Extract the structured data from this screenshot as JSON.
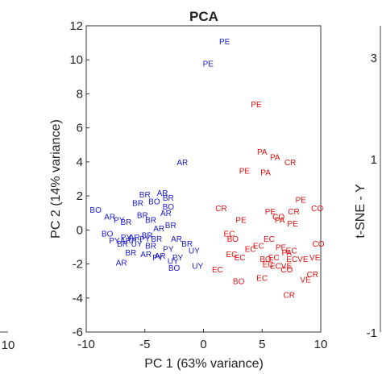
{
  "chart_data": {
    "type": "scatter",
    "title": "PCA",
    "xlabel": "PC 1 (63% variance)",
    "ylabel": "PC 2 (14% variance)",
    "xlim": [
      -10,
      10
    ],
    "ylim": [
      -6,
      12
    ],
    "xticks": [
      "-10",
      "-5",
      "0",
      "5",
      "10"
    ],
    "yticks": [
      "-6",
      "-4",
      "-2",
      "0",
      "2",
      "4",
      "6",
      "8",
      "10",
      "12"
    ],
    "grid": false,
    "colors": {
      "group_blue": "#1a1acc",
      "group_red": "#dd1111"
    },
    "series": [
      {
        "color_key": "group_blue",
        "points": [
          {
            "label": "PE",
            "x": 1.8,
            "y": 11.1
          },
          {
            "label": "PE",
            "x": 0.4,
            "y": 9.8
          },
          {
            "label": "AR",
            "x": -1.8,
            "y": 4.0
          },
          {
            "label": "BR",
            "x": -5.0,
            "y": 2.1
          },
          {
            "label": "AR",
            "x": -3.5,
            "y": 2.2
          },
          {
            "label": "BR",
            "x": -3.0,
            "y": 1.9
          },
          {
            "label": "BR",
            "x": -5.6,
            "y": 1.6
          },
          {
            "label": "BO",
            "x": -4.2,
            "y": 1.7
          },
          {
            "label": "BO",
            "x": -3.0,
            "y": 1.4
          },
          {
            "label": "BO",
            "x": -9.2,
            "y": 1.2
          },
          {
            "label": "AR",
            "x": -8.0,
            "y": 0.8
          },
          {
            "label": "BR",
            "x": -5.2,
            "y": 0.9
          },
          {
            "label": "AR",
            "x": -3.2,
            "y": 1.0
          },
          {
            "label": "BR",
            "x": -6.6,
            "y": 0.5
          },
          {
            "label": "BR",
            "x": -4.5,
            "y": 0.6
          },
          {
            "label": "BR",
            "x": -2.8,
            "y": 0.3
          },
          {
            "label": "PY",
            "x": -7.2,
            "y": 0.6
          },
          {
            "label": "BO",
            "x": -8.2,
            "y": -0.2
          },
          {
            "label": "PY",
            "x": -6.6,
            "y": -0.4
          },
          {
            "label": "AR",
            "x": -3.8,
            "y": 0.1
          },
          {
            "label": "BR",
            "x": -4.8,
            "y": -0.3
          },
          {
            "label": "AR",
            "x": -5.9,
            "y": -0.4
          },
          {
            "label": "PY",
            "x": -7.6,
            "y": -0.6
          },
          {
            "label": "ARP",
            "x": -6.4,
            "y": -0.6
          },
          {
            "label": "PY",
            "x": -5.0,
            "y": -0.5
          },
          {
            "label": "BR",
            "x": -4.0,
            "y": -0.5
          },
          {
            "label": "AR",
            "x": -2.3,
            "y": -0.5
          },
          {
            "label": "BR",
            "x": -6.9,
            "y": -0.8
          },
          {
            "label": "UY",
            "x": -5.7,
            "y": -0.8
          },
          {
            "label": "BR",
            "x": -4.5,
            "y": -0.9
          },
          {
            "label": "PY",
            "x": -3.0,
            "y": -1.1
          },
          {
            "label": "BR",
            "x": -6.2,
            "y": -1.3
          },
          {
            "label": "AR",
            "x": -4.9,
            "y": -1.4
          },
          {
            "label": "AR",
            "x": -3.7,
            "y": -1.5
          },
          {
            "label": "BR",
            "x": -1.4,
            "y": -0.8
          },
          {
            "label": "PY",
            "x": -2.2,
            "y": -1.6
          },
          {
            "label": "UY",
            "x": -0.8,
            "y": -1.2
          },
          {
            "label": "AR",
            "x": -7.0,
            "y": -1.9
          },
          {
            "label": "PY",
            "x": -3.9,
            "y": -1.6
          },
          {
            "label": "UY",
            "x": -2.6,
            "y": -1.8
          },
          {
            "label": "BO",
            "x": -2.5,
            "y": -2.2
          },
          {
            "label": "UY",
            "x": -0.5,
            "y": -2.1
          }
        ]
      },
      {
        "color_key": "group_red",
        "points": [
          {
            "label": "PE",
            "x": 4.5,
            "y": 7.4
          },
          {
            "label": "PA",
            "x": 5.0,
            "y": 4.6
          },
          {
            "label": "PA",
            "x": 6.1,
            "y": 4.3
          },
          {
            "label": "CR",
            "x": 7.4,
            "y": 4.0
          },
          {
            "label": "PE",
            "x": 3.5,
            "y": 3.5
          },
          {
            "label": "PA",
            "x": 5.3,
            "y": 3.4
          },
          {
            "label": "CR",
            "x": 1.5,
            "y": 1.3
          },
          {
            "label": "PE",
            "x": 8.3,
            "y": 1.8
          },
          {
            "label": "CR",
            "x": 7.7,
            "y": 1.1
          },
          {
            "label": "CO",
            "x": 6.4,
            "y": 0.8
          },
          {
            "label": "PA",
            "x": 6.5,
            "y": 0.6
          },
          {
            "label": "CO",
            "x": 9.7,
            "y": 1.3
          },
          {
            "label": "PE",
            "x": 5.7,
            "y": 1.1
          },
          {
            "label": "PE",
            "x": 3.2,
            "y": 0.6
          },
          {
            "label": "PE",
            "x": 7.6,
            "y": 0.4
          },
          {
            "label": "EC",
            "x": 2.2,
            "y": -0.2
          },
          {
            "label": "BO",
            "x": 2.5,
            "y": -0.5
          },
          {
            "label": "EC",
            "x": 5.6,
            "y": -0.5
          },
          {
            "label": "EC",
            "x": 4.7,
            "y": -0.9
          },
          {
            "label": "EC",
            "x": 4.0,
            "y": -1.1
          },
          {
            "label": "PE",
            "x": 6.6,
            "y": -1.0
          },
          {
            "label": "EC",
            "x": 7.5,
            "y": -1.2
          },
          {
            "label": "CO",
            "x": 9.8,
            "y": -0.8
          },
          {
            "label": "PA",
            "x": 7.1,
            "y": -1.3
          },
          {
            "label": "EC",
            "x": 3.1,
            "y": -1.6
          },
          {
            "label": "EC",
            "x": 2.4,
            "y": -1.4
          },
          {
            "label": "BO",
            "x": 5.3,
            "y": -1.7
          },
          {
            "label": "EC",
            "x": 6.0,
            "y": -1.6
          },
          {
            "label": "ECVE",
            "x": 8.0,
            "y": -1.7
          },
          {
            "label": "VE",
            "x": 9.5,
            "y": -1.6
          },
          {
            "label": "EC",
            "x": 5.5,
            "y": -2.0
          },
          {
            "label": "ECVE",
            "x": 6.6,
            "y": -2.1
          },
          {
            "label": "EC",
            "x": 1.2,
            "y": -2.3
          },
          {
            "label": "CO",
            "x": 7.1,
            "y": -2.3
          },
          {
            "label": "CR",
            "x": 9.3,
            "y": -2.6
          },
          {
            "label": "EC",
            "x": 5.0,
            "y": -2.8
          },
          {
            "label": "VE",
            "x": 8.7,
            "y": -2.9
          },
          {
            "label": "BO",
            "x": 3.0,
            "y": -3.0
          },
          {
            "label": "CR",
            "x": 7.3,
            "y": -3.8
          }
        ]
      }
    ],
    "left_panel_fragments": {
      "tick": "10"
    },
    "right_panel_fragments": {
      "ticks": [
        "3",
        "1",
        "-1"
      ],
      "ylabel": "t-SNE - Y"
    }
  }
}
